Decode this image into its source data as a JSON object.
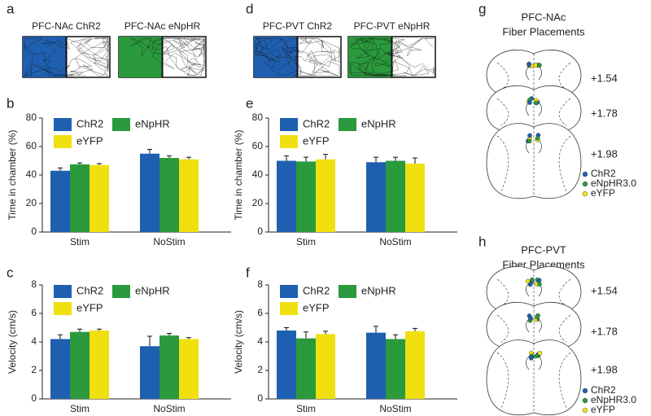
{
  "panel_labels": [
    "a",
    "b",
    "c",
    "d",
    "e",
    "f",
    "g",
    "h"
  ],
  "tracks": [
    "PFC-NAc ChR2",
    "PFC-NAc eNpHR",
    "PFC-PVT ChR2",
    "PFC-PVT eNpHR"
  ],
  "track_colors": [
    "#1f5fb0",
    "#2a9a3c",
    "#1f5fb0",
    "#2a9a3c"
  ],
  "placements": [
    {
      "title": [
        "PFC-NAc",
        "Fiber Placements"
      ],
      "levels": [
        "+1.54",
        "+1.78",
        "+1.98"
      ],
      "legend": [
        {
          "name": "ChR2",
          "color": "#1f5fb0"
        },
        {
          "name": "eNpHR3.0",
          "color": "#2a9a3c"
        },
        {
          "name": "eYFP",
          "color": "#f0e010"
        }
      ]
    },
    {
      "title": [
        "PFC-PVT",
        "Fiber Placements"
      ],
      "levels": [
        "+1.54",
        "+1.78",
        "+1.98"
      ],
      "legend": [
        {
          "name": "ChR2",
          "color": "#1f5fb0"
        },
        {
          "name": "eNpHR3.0",
          "color": "#2a9a3c"
        },
        {
          "name": "eYFP",
          "color": "#f0e010"
        }
      ]
    }
  ],
  "chart_data": [
    {
      "type": "bar",
      "ylabel": "Time in chamber (%)",
      "categories": [
        "Stim",
        "NoStim"
      ],
      "ylim": [
        0,
        80
      ],
      "yticks": [
        0,
        20,
        40,
        60,
        80
      ],
      "series": [
        {
          "name": "ChR2",
          "color": "#1f5fb0",
          "values": [
            43,
            55
          ],
          "errors": [
            2,
            3
          ]
        },
        {
          "name": "eNpHR",
          "color": "#2a9a3c",
          "values": [
            47.5,
            52
          ],
          "errors": [
            1,
            1.5
          ]
        },
        {
          "name": "eYFP",
          "color": "#f0e010",
          "values": [
            47,
            51
          ],
          "errors": [
            1,
            1.5
          ]
        }
      ]
    },
    {
      "type": "bar",
      "ylabel": "Velocity (cm/s)",
      "categories": [
        "Stim",
        "NoStim"
      ],
      "ylim": [
        0,
        8
      ],
      "yticks": [
        0,
        2,
        4,
        6,
        8
      ],
      "series": [
        {
          "name": "ChR2",
          "color": "#1f5fb0",
          "values": [
            4.2,
            3.7
          ],
          "errors": [
            0.3,
            0.7
          ]
        },
        {
          "name": "eNpHR",
          "color": "#2a9a3c",
          "values": [
            4.7,
            4.45
          ],
          "errors": [
            0.2,
            0.15
          ]
        },
        {
          "name": "eYFP",
          "color": "#f0e010",
          "values": [
            4.8,
            4.2
          ],
          "errors": [
            0.1,
            0.1
          ]
        }
      ]
    },
    {
      "type": "bar",
      "ylabel": "Time in chamber (%)",
      "categories": [
        "Stim",
        "NoStim"
      ],
      "ylim": [
        0,
        80
      ],
      "yticks": [
        0,
        20,
        40,
        60,
        80
      ],
      "series": [
        {
          "name": "ChR2",
          "color": "#1f5fb0",
          "values": [
            50,
            49
          ],
          "errors": [
            3.5,
            3.5
          ]
        },
        {
          "name": "eNpHR",
          "color": "#2a9a3c",
          "values": [
            49.5,
            50
          ],
          "errors": [
            3,
            2.5
          ]
        },
        {
          "name": "eYFP",
          "color": "#f0e010",
          "values": [
            51,
            48
          ],
          "errors": [
            3.5,
            4
          ]
        }
      ]
    },
    {
      "type": "bar",
      "ylabel": "Velocity (cm/s)",
      "categories": [
        "Stim",
        "NoStim"
      ],
      "ylim": [
        0,
        8
      ],
      "yticks": [
        0,
        2,
        4,
        6,
        8
      ],
      "series": [
        {
          "name": "ChR2",
          "color": "#1f5fb0",
          "values": [
            4.8,
            4.65
          ],
          "errors": [
            0.2,
            0.45
          ]
        },
        {
          "name": "eNpHR",
          "color": "#2a9a3c",
          "values": [
            4.25,
            4.2
          ],
          "errors": [
            0.45,
            0.3
          ]
        },
        {
          "name": "eYFP",
          "color": "#f0e010",
          "values": [
            4.55,
            4.75
          ],
          "errors": [
            0.2,
            0.2
          ]
        }
      ]
    }
  ]
}
